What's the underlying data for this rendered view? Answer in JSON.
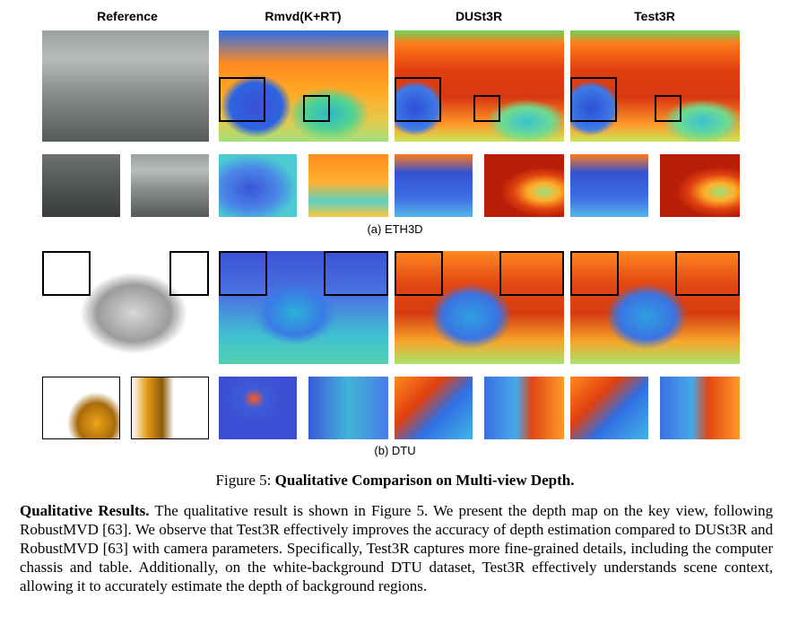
{
  "figure": {
    "columns": [
      "Reference",
      "Rmvd(K+RT)",
      "DUSt3R",
      "Test3R"
    ],
    "sub_a": "(a) ETH3D",
    "sub_b": "(b) DTU",
    "caption_prefix": "Figure 5: ",
    "caption_bold": "Qualitative Comparison on Multi-view Depth."
  },
  "paragraph": {
    "heading": "Qualitative Results.",
    "body": "The qualitative result is shown in Figure 5. We present the depth map on the key view, following RobustMVD [63]. We observe that Test3R effectively improves the accuracy of depth estimation compared to DUSt3R and RobustMVD [63] with camera parameters. Specifically, Test3R captures more fine-grained details, including the computer chassis and table. Additionally, on the white-background DTU dataset, Test3R effectively understands scene context, allowing it to accurately estimate the depth of background regions."
  }
}
